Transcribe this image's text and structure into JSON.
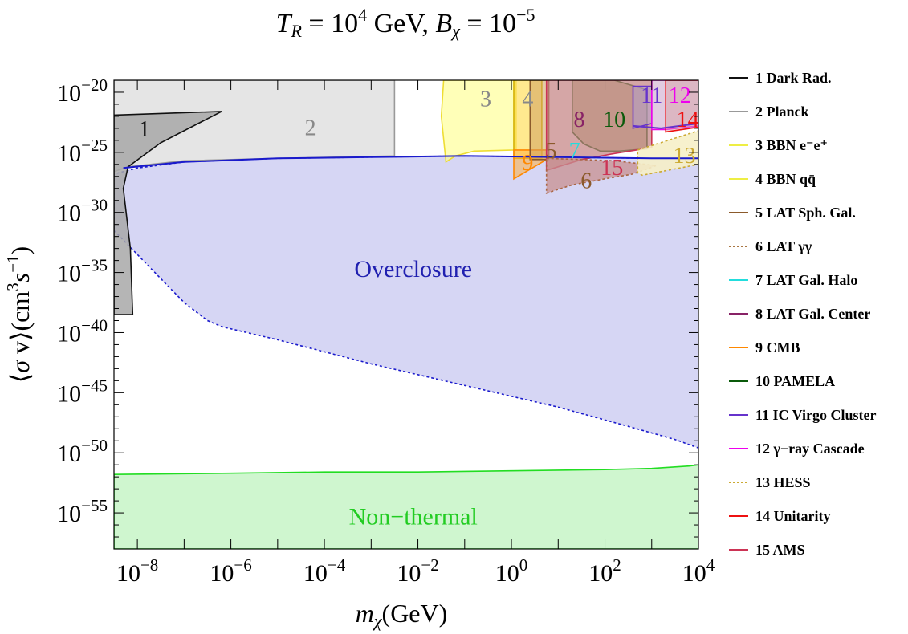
{
  "title": "T_R = 10^4 GeV,  B_χ = 10^−5",
  "chart_data": {
    "type": "area",
    "title": "T_R = 10^4 GeV,  B_χ = 10^−5",
    "xlabel": "m_χ(GeV)",
    "ylabel": "⟨σ v⟩(cm³s⁻¹)",
    "x_scale": "log",
    "y_scale": "log",
    "xlim_log10": [
      -8.5,
      4
    ],
    "ylim_log10": [
      -58,
      -19
    ],
    "x_ticks": [
      {
        "exp": -8,
        "label": "10",
        "sup": "−8"
      },
      {
        "exp": -6,
        "label": "10",
        "sup": "−6"
      },
      {
        "exp": -4,
        "label": "10",
        "sup": "−4"
      },
      {
        "exp": -2,
        "label": "10",
        "sup": "−2"
      },
      {
        "exp": 0,
        "label": "10",
        "sup": "0"
      },
      {
        "exp": 2,
        "label": "10",
        "sup": "2"
      },
      {
        "exp": 4,
        "label": "10",
        "sup": "4"
      }
    ],
    "y_ticks": [
      {
        "exp": -20,
        "label": "10",
        "sup": "−20"
      },
      {
        "exp": -25,
        "label": "10",
        "sup": "−25"
      },
      {
        "exp": -30,
        "label": "10",
        "sup": "−30"
      },
      {
        "exp": -35,
        "label": "10",
        "sup": "−35"
      },
      {
        "exp": -40,
        "label": "10",
        "sup": "−40"
      },
      {
        "exp": -45,
        "label": "10",
        "sup": "−45"
      },
      {
        "exp": -50,
        "label": "10",
        "sup": "−50"
      },
      {
        "exp": -55,
        "label": "10",
        "sup": "−55"
      }
    ],
    "region_labels": [
      {
        "text": "Overclosure",
        "x": -2.1,
        "y": -34.7,
        "color": "#2020b0"
      },
      {
        "text": "Non−thermal",
        "x": -2.1,
        "y": -55.3,
        "color": "#22cc22"
      }
    ],
    "regions": [
      {
        "id": "overclosure",
        "fill": "#c8c8f0",
        "fill_opacity": 0.75,
        "stroke": "#1a1acc",
        "dash": true,
        "points": [
          [
            -8.5,
            -31.5
          ],
          [
            -8.0,
            -33.5
          ],
          [
            -7.5,
            -35.5
          ],
          [
            -7.0,
            -37.5
          ],
          [
            -6.5,
            -39.0
          ],
          [
            -6.2,
            -39.5
          ],
          [
            -5,
            -40.6
          ],
          [
            -3,
            -42.6
          ],
          [
            -1,
            -44.4
          ],
          [
            1,
            -46.2
          ],
          [
            2.5,
            -47.8
          ],
          [
            3.5,
            -48.9
          ],
          [
            4,
            -49.6
          ],
          [
            4,
            -25.5
          ],
          [
            3,
            -25.5
          ],
          [
            1,
            -25.4
          ],
          [
            -1,
            -25.3
          ],
          [
            -3,
            -25.4
          ],
          [
            -5,
            -25.5
          ],
          [
            -7,
            -25.8
          ],
          [
            -8,
            -26.3
          ],
          [
            -8.5,
            -26.8
          ]
        ]
      },
      {
        "id": "non-thermal",
        "fill": "#ccf5cc",
        "fill_opacity": 0.95,
        "stroke": "#22dd22",
        "points": [
          [
            -8.5,
            -51.8
          ],
          [
            -6,
            -51.7
          ],
          [
            -4,
            -51.6
          ],
          [
            -2,
            -51.6
          ],
          [
            0,
            -51.5
          ],
          [
            2,
            -51.4
          ],
          [
            3,
            -51.3
          ],
          [
            3.8,
            -51.1
          ],
          [
            4,
            -51.0
          ],
          [
            4,
            -58
          ],
          [
            -8.5,
            -58
          ]
        ]
      },
      {
        "id": "region-2",
        "fill": "#dcdcdc",
        "fill_opacity": 0.75,
        "stroke": "#999999",
        "points": [
          [
            -8.5,
            -19
          ],
          [
            -2.5,
            -19
          ],
          [
            -2.5,
            -25.3
          ],
          [
            -5,
            -25.5
          ],
          [
            -7,
            -25.7
          ],
          [
            -8.2,
            -26.2
          ],
          [
            -8.5,
            -26.6
          ]
        ]
      },
      {
        "id": "region-1",
        "fill": "#a8a8a8",
        "fill_opacity": 0.85,
        "stroke": "#111111",
        "points": [
          [
            -8.5,
            -21.9
          ],
          [
            -6.2,
            -21.6
          ],
          [
            -7.5,
            -24.2
          ],
          [
            -8.2,
            -26.2
          ],
          [
            -8.3,
            -28
          ],
          [
            -8.15,
            -33
          ],
          [
            -8.1,
            -38.5
          ],
          [
            -8.5,
            -38.5
          ]
        ]
      },
      {
        "id": "region-3",
        "fill": "#ffff88",
        "fill_opacity": 0.6,
        "stroke": "#eedd33",
        "points": [
          [
            -1.45,
            -19
          ],
          [
            0.1,
            -19
          ],
          [
            0.1,
            -24.8
          ],
          [
            -0.8,
            -24.9
          ],
          [
            -1.2,
            -25.3
          ],
          [
            -1.4,
            -25.8
          ],
          [
            -1.5,
            -22
          ]
        ]
      },
      {
        "id": "region-4",
        "fill": "#ffe060",
        "fill_opacity": 0.7,
        "stroke": "#d4b000",
        "points": [
          [
            0.05,
            -19
          ],
          [
            0.65,
            -19
          ],
          [
            0.65,
            -25.5
          ],
          [
            0.05,
            -25.5
          ]
        ]
      },
      {
        "id": "region-9",
        "fill": "#ffb040",
        "fill_opacity": 0.55,
        "stroke": "#ff8800",
        "points": [
          [
            0.05,
            -24.8
          ],
          [
            0.75,
            -24.8
          ],
          [
            0.75,
            -25.6
          ],
          [
            0.05,
            -27.2
          ]
        ]
      },
      {
        "id": "region-5",
        "fill": "#cfa060",
        "fill_opacity": 0.55,
        "stroke": "#8b5a2b",
        "points": [
          [
            0.4,
            -19
          ],
          [
            0.8,
            -19
          ],
          [
            0.8,
            -25.6
          ],
          [
            0.4,
            -25.6
          ]
        ]
      },
      {
        "id": "region-10",
        "fill": "#8c9a4a",
        "fill_opacity": 0.5,
        "stroke": "#0a5a0a",
        "points": [
          [
            1.3,
            -19
          ],
          [
            2.2,
            -19
          ],
          [
            2.9,
            -19.8
          ],
          [
            2.9,
            -24.7
          ],
          [
            2.3,
            -24.9
          ],
          [
            1.9,
            -24.9
          ],
          [
            1.55,
            -24.3
          ],
          [
            1.3,
            -23.3
          ]
        ]
      },
      {
        "id": "region-8",
        "fill": "#c38080",
        "fill_opacity": 0.7,
        "stroke": "#cc3355",
        "points": [
          [
            0.75,
            -19
          ],
          [
            1.5,
            -19
          ],
          [
            3.0,
            -19
          ],
          [
            3.0,
            -24.6
          ],
          [
            2.2,
            -25.1
          ],
          [
            1.5,
            -25.6
          ],
          [
            0.75,
            -26.5
          ]
        ]
      },
      {
        "id": "region-6",
        "fill": "#c89090",
        "fill_opacity": 0.75,
        "stroke": "#aa6644",
        "dash": true,
        "points": [
          [
            0.75,
            -25.5
          ],
          [
            1.5,
            -25.6
          ],
          [
            2.2,
            -25.7
          ],
          [
            3.1,
            -26.1
          ],
          [
            2.6,
            -26.8
          ],
          [
            2.0,
            -27.2
          ],
          [
            1.3,
            -27.7
          ],
          [
            0.75,
            -28.4
          ]
        ]
      },
      {
        "id": "region-11",
        "fill": "#b4a0cc",
        "fill_opacity": 0.55,
        "stroke": "#6633cc",
        "points": [
          [
            2.6,
            -19.5
          ],
          [
            3.0,
            -19.5
          ],
          [
            3.0,
            -22.6
          ],
          [
            2.6,
            -23.0
          ]
        ]
      },
      {
        "id": "region-12",
        "fill": "#c8a0c8",
        "fill_opacity": 0.55,
        "stroke": "#ee00ee",
        "points": [
          [
            3.0,
            -19
          ],
          [
            3.7,
            -19
          ],
          [
            4,
            -19
          ],
          [
            4,
            -22.8
          ],
          [
            3.3,
            -23.1
          ],
          [
            3.0,
            -23.1
          ]
        ]
      },
      {
        "id": "region-14",
        "fill": "#d8a0a0",
        "fill_opacity": 0.45,
        "stroke": "#ee1111",
        "points": [
          [
            3.3,
            -19
          ],
          [
            4,
            -19
          ],
          [
            4,
            -22.9
          ],
          [
            3.3,
            -23.3
          ]
        ]
      },
      {
        "id": "region-13",
        "fill": "#f6f0c8",
        "fill_opacity": 0.9,
        "stroke": "#ccaa33",
        "dash": true,
        "points": [
          [
            2.7,
            -24.8
          ],
          [
            4,
            -23.2
          ],
          [
            4,
            -26.0
          ],
          [
            3.6,
            -26.3
          ],
          [
            3.2,
            -26.6
          ],
          [
            2.8,
            -26.9
          ],
          [
            2.7,
            -26.7
          ]
        ]
      }
    ],
    "boundary_lines": [
      {
        "id": "overclosure-edge",
        "stroke": "#1a1acc",
        "points": [
          [
            -8.3,
            -26.3
          ],
          [
            -7,
            -25.8
          ],
          [
            -5,
            -25.5
          ],
          [
            -3,
            -25.4
          ],
          [
            -1,
            -25.3
          ],
          [
            1,
            -25.4
          ],
          [
            3,
            -25.5
          ],
          [
            4,
            -25.5
          ]
        ]
      },
      {
        "id": "ic-virgo-line",
        "stroke": "#6633cc",
        "points": [
          [
            2.6,
            -22.8
          ],
          [
            3.2,
            -23.0
          ],
          [
            4,
            -22.6
          ]
        ]
      }
    ],
    "number_labels": [
      {
        "text": "1",
        "x": -7.85,
        "y": -23.0,
        "color": "#111111"
      },
      {
        "text": "2",
        "x": -4.3,
        "y": -22.9,
        "color": "#888888"
      },
      {
        "text": "3",
        "x": -0.55,
        "y": -20.5,
        "color": "#888888"
      },
      {
        "text": "4",
        "x": 0.35,
        "y": -20.5,
        "color": "#888888"
      },
      {
        "text": "5",
        "x": 0.85,
        "y": -24.8,
        "color": "#8b5a2b"
      },
      {
        "text": "7",
        "x": 1.35,
        "y": -24.8,
        "color": "#22dddd"
      },
      {
        "text": "9",
        "x": 0.35,
        "y": -25.8,
        "color": "#ff8800"
      },
      {
        "text": "8",
        "x": 1.45,
        "y": -22.2,
        "color": "#882266"
      },
      {
        "text": "10",
        "x": 2.2,
        "y": -22.2,
        "color": "#0a5a0a"
      },
      {
        "text": "15",
        "x": 2.15,
        "y": -26.2,
        "color": "#cc3355"
      },
      {
        "text": "6",
        "x": 1.6,
        "y": -27.3,
        "color": "#8b5a2b"
      },
      {
        "text": "11",
        "x": 3.0,
        "y": -20.2,
        "color": "#6633cc"
      },
      {
        "text": "12",
        "x": 3.6,
        "y": -20.2,
        "color": "#ee00ee"
      },
      {
        "text": "14",
        "x": 3.77,
        "y": -22.2,
        "color": "#ee1111"
      },
      {
        "text": "13",
        "x": 3.7,
        "y": -25.2,
        "color": "#ccaa33"
      }
    ],
    "legend": [
      {
        "label": "1 Dark Rad.",
        "color": "#111111",
        "dash": false
      },
      {
        "label": "2 Planck",
        "color": "#999999",
        "dash": false
      },
      {
        "label": "3 BBN e⁻e⁺",
        "color": "#eeee44",
        "dash": false
      },
      {
        "label": "4 BBN qq̄",
        "color": "#eeee44",
        "dash": false
      },
      {
        "label": "5 LAT Sph. Gal.",
        "color": "#8b5a2b",
        "dash": false
      },
      {
        "label": "6 LAT γγ",
        "color": "#aa7744",
        "dash": true
      },
      {
        "label": "7 LAT Gal. Halo",
        "color": "#22dddd",
        "dash": false
      },
      {
        "label": "8 LAT Gal. Center",
        "color": "#882266",
        "dash": false
      },
      {
        "label": "9 CMB",
        "color": "#ff8800",
        "dash": false
      },
      {
        "label": "10 PAMELA",
        "color": "#0a5a0a",
        "dash": false
      },
      {
        "label": "11 IC Virgo Cluster",
        "color": "#6633cc",
        "dash": false
      },
      {
        "label": "12 γ−ray Cascade",
        "color": "#ee00ee",
        "dash": false
      },
      {
        "label": "13 HESS",
        "color": "#ccaa33",
        "dash": true
      },
      {
        "label": "14 Unitarity",
        "color": "#ee1111",
        "dash": false
      },
      {
        "label": "15 AMS",
        "color": "#cc3355",
        "dash": false
      }
    ],
    "grid": false,
    "legend_position": "right"
  }
}
